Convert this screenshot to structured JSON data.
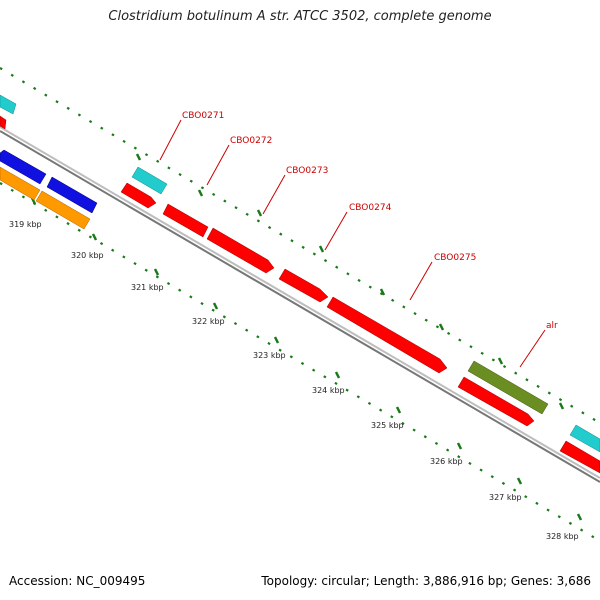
{
  "title": "Clostridium botulinum A str. ATCC 3502, complete genome",
  "footer": {
    "accession": "Accession: NC_009495",
    "stats": "Topology: circular; Length: 3,886,916 bp; Genes: 3,686"
  },
  "colors": {
    "backbone": "#8c8c8c",
    "tick": "#1a7a1a",
    "red": "#ff0000",
    "cyan": "#22cccc",
    "blue": "#1010e0",
    "orange": "#ff9900",
    "olive": "#6b8e23",
    "label": "#cc0000"
  },
  "ticks": [
    "319 kbp",
    "320 kbp",
    "321 kbp",
    "322 kbp",
    "323 kbp",
    "324 kbp",
    "325 kbp",
    "326 kbp",
    "327 kbp",
    "328 kbp"
  ],
  "genes": [
    "CBO0271",
    "CBO0272",
    "CBO0273",
    "CBO0274",
    "CBO0275",
    "alr"
  ]
}
